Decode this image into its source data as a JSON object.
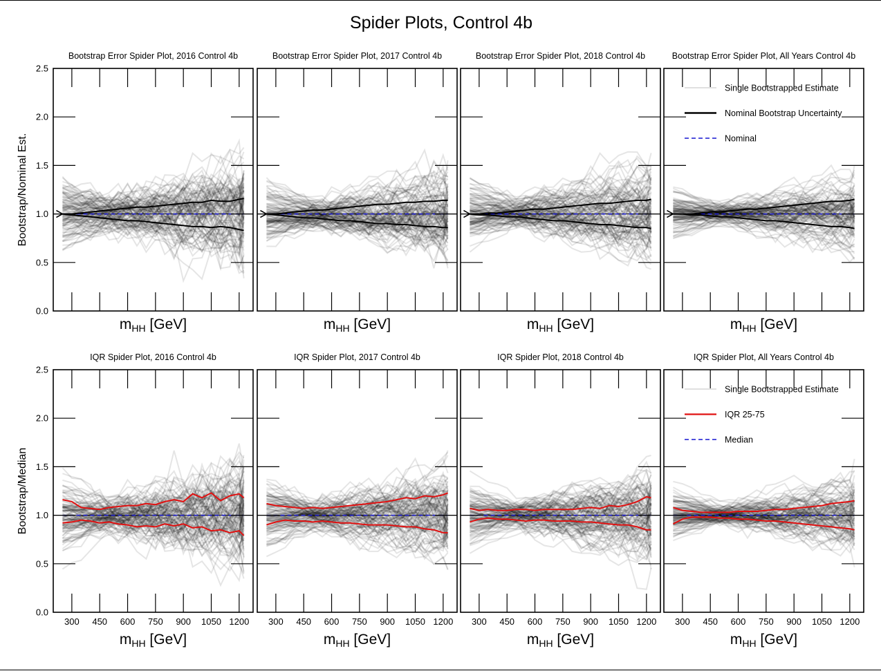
{
  "figure": {
    "title": "Spider Plots, Control 4b"
  },
  "rows": [
    {
      "ylabel": "Bootstrap/Nominal Est."
    },
    {
      "ylabel": "Bootstrap/Median"
    }
  ],
  "axes": {
    "xlabel_main": "m",
    "xlabel_sub": "HH",
    "xlabel_unit": " [GeV]",
    "xticks": [
      "300",
      "450",
      "600",
      "750",
      "900",
      "1050",
      "1200"
    ],
    "yticks": [
      "0.0",
      "0.5",
      "1.0",
      "1.5",
      "2.0",
      "2.5"
    ]
  },
  "legends": {
    "row0": [
      {
        "label": "Single Bootstrapped Estimate",
        "style": "gray-line"
      },
      {
        "label": "Nominal Bootstrap Uncertainty",
        "style": "black-line"
      },
      {
        "label": "Nominal",
        "style": "blue-dashed"
      }
    ],
    "row1": [
      {
        "label": "Single Bootstrapped Estimate",
        "style": "gray-line"
      },
      {
        "label": "IQR 25-75",
        "style": "red-line"
      },
      {
        "label": "Median",
        "style": "blue-dashed"
      }
    ]
  },
  "chart_data": [
    {
      "type": "line",
      "row": 0,
      "col": 0,
      "title": "Bootstrap Error Spider Plot, 2016 Control 4b",
      "x": [
        250,
        300,
        350,
        400,
        450,
        500,
        550,
        600,
        650,
        700,
        750,
        800,
        850,
        900,
        950,
        1000,
        1050,
        1100,
        1150,
        1200,
        1225
      ],
      "xlim": [
        200,
        1275
      ],
      "ylim": [
        0,
        2.5
      ],
      "series": [
        {
          "name": "Nominal Bootstrap Uncertainty",
          "upper": [
            1.0,
            1.0,
            1.01,
            1.02,
            1.03,
            1.04,
            1.05,
            1.06,
            1.07,
            1.07,
            1.08,
            1.09,
            1.1,
            1.11,
            1.12,
            1.12,
            1.14,
            1.13,
            1.13,
            1.15,
            1.16
          ],
          "lower": [
            1.0,
            0.99,
            0.98,
            0.97,
            0.96,
            0.95,
            0.94,
            0.93,
            0.93,
            0.92,
            0.91,
            0.9,
            0.89,
            0.88,
            0.87,
            0.87,
            0.86,
            0.87,
            0.86,
            0.84,
            0.83
          ]
        },
        {
          "name": "Nominal",
          "y": 1.0
        }
      ],
      "gray_band": {
        "count": 110,
        "start_spread": 0.32,
        "mid_spread": 0.12,
        "end_spread": 0.42,
        "noise": 0.1
      }
    },
    {
      "type": "line",
      "row": 0,
      "col": 1,
      "title": "Bootstrap Error Spider Plot, 2017 Control 4b",
      "x": [
        250,
        300,
        350,
        400,
        450,
        500,
        550,
        600,
        650,
        700,
        750,
        800,
        850,
        900,
        950,
        1000,
        1050,
        1100,
        1150,
        1200,
        1225
      ],
      "xlim": [
        200,
        1275
      ],
      "ylim": [
        0,
        2.5
      ],
      "series": [
        {
          "name": "Nominal Bootstrap Uncertainty",
          "upper": [
            1.0,
            1.0,
            1.01,
            1.02,
            1.03,
            1.04,
            1.04,
            1.05,
            1.06,
            1.07,
            1.08,
            1.09,
            1.1,
            1.1,
            1.11,
            1.12,
            1.12,
            1.13,
            1.13,
            1.14,
            1.14
          ],
          "lower": [
            1.0,
            0.99,
            0.98,
            0.97,
            0.96,
            0.96,
            0.95,
            0.94,
            0.93,
            0.93,
            0.92,
            0.91,
            0.9,
            0.9,
            0.89,
            0.89,
            0.88,
            0.87,
            0.87,
            0.86,
            0.86
          ]
        },
        {
          "name": "Nominal",
          "y": 1.0
        }
      ],
      "gray_band": {
        "count": 110,
        "start_spread": 0.28,
        "mid_spread": 0.11,
        "end_spread": 0.36,
        "noise": 0.07
      }
    },
    {
      "type": "line",
      "row": 0,
      "col": 2,
      "title": "Bootstrap Error Spider Plot, 2018 Control 4b",
      "x": [
        250,
        300,
        350,
        400,
        450,
        500,
        550,
        600,
        650,
        700,
        750,
        800,
        850,
        900,
        950,
        1000,
        1050,
        1100,
        1150,
        1200,
        1225
      ],
      "xlim": [
        200,
        1275
      ],
      "ylim": [
        0,
        2.5
      ],
      "series": [
        {
          "name": "Nominal Bootstrap Uncertainty",
          "upper": [
            1.0,
            1.0,
            1.01,
            1.01,
            1.02,
            1.03,
            1.04,
            1.05,
            1.05,
            1.06,
            1.07,
            1.08,
            1.09,
            1.1,
            1.11,
            1.11,
            1.12,
            1.13,
            1.14,
            1.14,
            1.15
          ],
          "lower": [
            1.0,
            0.99,
            0.99,
            0.98,
            0.97,
            0.97,
            0.96,
            0.95,
            0.94,
            0.93,
            0.93,
            0.92,
            0.91,
            0.9,
            0.89,
            0.89,
            0.88,
            0.87,
            0.86,
            0.86,
            0.85
          ]
        },
        {
          "name": "Nominal",
          "y": 1.0
        }
      ],
      "gray_band": {
        "count": 110,
        "start_spread": 0.26,
        "mid_spread": 0.1,
        "end_spread": 0.4,
        "noise": 0.07
      }
    },
    {
      "type": "line",
      "row": 0,
      "col": 3,
      "title": "Bootstrap Error Spider Plot, All Years Control 4b",
      "x": [
        250,
        300,
        350,
        400,
        450,
        500,
        550,
        600,
        650,
        700,
        750,
        800,
        850,
        900,
        950,
        1000,
        1050,
        1100,
        1150,
        1200,
        1225
      ],
      "xlim": [
        200,
        1275
      ],
      "ylim": [
        0,
        2.5
      ],
      "series": [
        {
          "name": "Nominal Bootstrap Uncertainty",
          "upper": [
            1.0,
            1.0,
            1.0,
            1.01,
            1.02,
            1.02,
            1.03,
            1.04,
            1.05,
            1.05,
            1.06,
            1.07,
            1.08,
            1.09,
            1.1,
            1.11,
            1.12,
            1.13,
            1.13,
            1.14,
            1.15
          ],
          "lower": [
            1.0,
            1.0,
            0.99,
            0.99,
            0.98,
            0.97,
            0.97,
            0.96,
            0.95,
            0.94,
            0.93,
            0.93,
            0.92,
            0.91,
            0.9,
            0.89,
            0.88,
            0.87,
            0.87,
            0.86,
            0.85
          ]
        },
        {
          "name": "Nominal",
          "y": 1.0
        }
      ],
      "gray_band": {
        "count": 110,
        "start_spread": 0.22,
        "mid_spread": 0.08,
        "end_spread": 0.34,
        "noise": 0.05
      }
    },
    {
      "type": "line",
      "row": 1,
      "col": 0,
      "title": "IQR Spider Plot, 2016 Control 4b",
      "x": [
        250,
        300,
        350,
        400,
        450,
        500,
        550,
        600,
        650,
        700,
        750,
        800,
        850,
        900,
        950,
        1000,
        1050,
        1100,
        1150,
        1200,
        1225
      ],
      "xlim": [
        200,
        1275
      ],
      "ylim": [
        0,
        2.5
      ],
      "series": [
        {
          "name": "IQR 25-75",
          "upper": [
            1.16,
            1.14,
            1.08,
            1.07,
            1.06,
            1.08,
            1.09,
            1.1,
            1.1,
            1.12,
            1.11,
            1.14,
            1.16,
            1.14,
            1.22,
            1.18,
            1.23,
            1.15,
            1.2,
            1.22,
            1.18
          ],
          "lower": [
            0.92,
            0.93,
            0.95,
            0.94,
            0.92,
            0.93,
            0.91,
            0.9,
            0.88,
            0.89,
            0.88,
            0.91,
            0.89,
            0.91,
            0.87,
            0.88,
            0.84,
            0.85,
            0.82,
            0.84,
            0.79
          ]
        },
        {
          "name": "Median",
          "y": 1.0
        }
      ],
      "gray_band": {
        "count": 110,
        "start_spread": 0.34,
        "mid_spread": 0.12,
        "end_spread": 0.42,
        "noise": 0.1
      }
    },
    {
      "type": "line",
      "row": 1,
      "col": 1,
      "title": "IQR Spider Plot, 2017 Control 4b",
      "x": [
        250,
        300,
        350,
        400,
        450,
        500,
        550,
        600,
        650,
        700,
        750,
        800,
        850,
        900,
        950,
        1000,
        1050,
        1100,
        1150,
        1200,
        1225
      ],
      "xlim": [
        200,
        1275
      ],
      "ylim": [
        0,
        2.5
      ],
      "series": [
        {
          "name": "IQR 25-75",
          "upper": [
            1.12,
            1.1,
            1.09,
            1.08,
            1.07,
            1.08,
            1.07,
            1.08,
            1.09,
            1.1,
            1.11,
            1.12,
            1.13,
            1.14,
            1.16,
            1.18,
            1.17,
            1.2,
            1.19,
            1.21,
            1.23
          ],
          "lower": [
            0.9,
            0.93,
            0.95,
            0.94,
            0.94,
            0.93,
            0.94,
            0.93,
            0.92,
            0.92,
            0.91,
            0.9,
            0.9,
            0.9,
            0.89,
            0.88,
            0.88,
            0.86,
            0.85,
            0.82,
            0.82
          ]
        },
        {
          "name": "Median",
          "y": 1.0
        }
      ],
      "gray_band": {
        "count": 110,
        "start_spread": 0.3,
        "mid_spread": 0.11,
        "end_spread": 0.38,
        "noise": 0.07
      }
    },
    {
      "type": "line",
      "row": 1,
      "col": 2,
      "title": "IQR Spider Plot, 2018 Control 4b",
      "x": [
        250,
        300,
        350,
        400,
        450,
        500,
        550,
        600,
        650,
        700,
        750,
        800,
        850,
        900,
        950,
        1000,
        1050,
        1100,
        1150,
        1200,
        1225
      ],
      "xlim": [
        200,
        1275
      ],
      "ylim": [
        0,
        2.5
      ],
      "series": [
        {
          "name": "IQR 25-75",
          "upper": [
            1.07,
            1.05,
            1.06,
            1.05,
            1.05,
            1.06,
            1.06,
            1.05,
            1.06,
            1.06,
            1.06,
            1.06,
            1.07,
            1.08,
            1.07,
            1.1,
            1.09,
            1.11,
            1.14,
            1.19,
            1.18
          ],
          "lower": [
            0.93,
            0.96,
            0.97,
            0.96,
            0.96,
            0.95,
            0.94,
            0.95,
            0.95,
            0.94,
            0.94,
            0.94,
            0.93,
            0.93,
            0.92,
            0.91,
            0.9,
            0.9,
            0.88,
            0.85,
            0.85
          ]
        },
        {
          "name": "Median",
          "y": 1.0
        }
      ],
      "gray_band": {
        "count": 110,
        "start_spread": 0.28,
        "mid_spread": 0.1,
        "end_spread": 0.4,
        "noise": 0.07
      }
    },
    {
      "type": "line",
      "row": 1,
      "col": 3,
      "title": "IQR Spider Plot, All Years Control 4b",
      "x": [
        250,
        300,
        350,
        400,
        450,
        500,
        550,
        600,
        650,
        700,
        750,
        800,
        850,
        900,
        950,
        1000,
        1050,
        1100,
        1150,
        1200,
        1225
      ],
      "xlim": [
        200,
        1275
      ],
      "ylim": [
        0,
        2.5
      ],
      "series": [
        {
          "name": "IQR 25-75",
          "upper": [
            1.08,
            1.05,
            1.04,
            1.03,
            1.03,
            1.03,
            1.03,
            1.04,
            1.04,
            1.04,
            1.05,
            1.06,
            1.06,
            1.07,
            1.08,
            1.09,
            1.1,
            1.12,
            1.13,
            1.14,
            1.15
          ],
          "lower": [
            0.91,
            0.96,
            0.98,
            0.98,
            0.98,
            0.97,
            0.97,
            0.96,
            0.96,
            0.95,
            0.94,
            0.94,
            0.93,
            0.92,
            0.91,
            0.9,
            0.89,
            0.88,
            0.87,
            0.86,
            0.85
          ]
        },
        {
          "name": "Median",
          "y": 1.0
        }
      ],
      "gray_band": {
        "count": 110,
        "start_spread": 0.24,
        "mid_spread": 0.08,
        "end_spread": 0.34,
        "noise": 0.05
      }
    }
  ]
}
